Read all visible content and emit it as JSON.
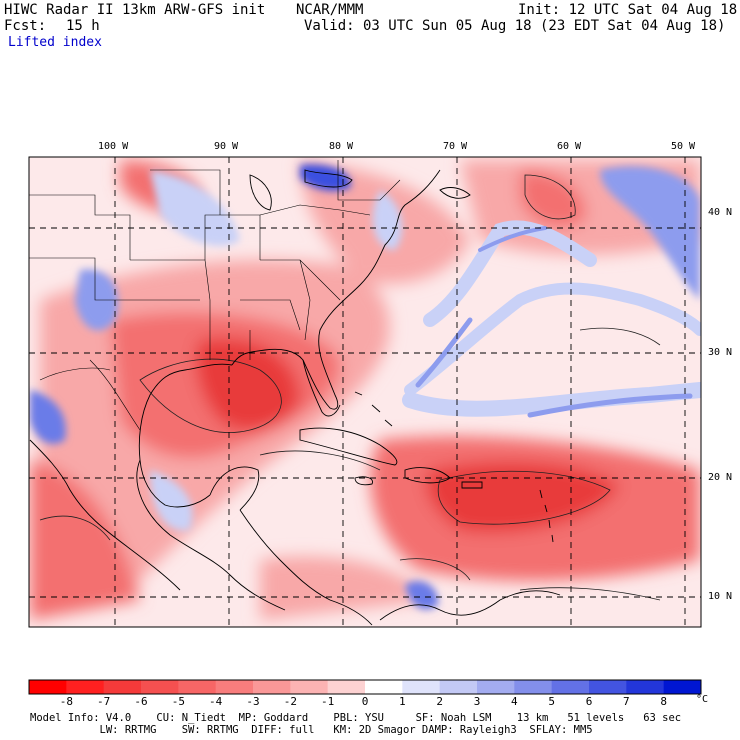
{
  "header": {
    "title": "HIWC Radar II 13km ARW-GFS init",
    "org": "NCAR/MMM",
    "fcst_label": "Fcst:",
    "fcst_value": "15 h",
    "init": "Init: 12 UTC Sat 04 Aug 18",
    "valid": "Valid: 03 UTC Sun 05 Aug 18 (23 EDT Sat 04 Aug 18)",
    "field": "Lifted index"
  },
  "map": {
    "lon_labels": [
      "100 W",
      "90 W",
      "80 W",
      "70 W",
      "60 W",
      "50 W"
    ],
    "lat_labels": [
      "40 N",
      "30 N",
      "20 N",
      "10 N"
    ],
    "colors": {
      "ocean_neutral": "#fde9ea",
      "red_strong": "#e83a3a",
      "red_mid": "#f37070",
      "red_light": "#f8a8a8",
      "blue_light": "#c9d1f7",
      "blue_mid": "#8d9cee",
      "blue_strong": "#3a4fe0"
    }
  },
  "colorbar": {
    "labels": [
      "-8",
      "-7",
      "-6",
      "-5",
      "-4",
      "-3",
      "-2",
      "-1",
      "0",
      "1",
      "2",
      "3",
      "4",
      "5",
      "6",
      "7",
      "8"
    ],
    "unit": "°C",
    "colors": [
      "#ff0000",
      "#ff2020",
      "#f53a3a",
      "#f55050",
      "#f76666",
      "#f87d7d",
      "#fa9898",
      "#fcb3b3",
      "#fdd2d2",
      "#ffffff",
      "#dfe3fb",
      "#c3c9f5",
      "#a3acf0",
      "#838feb",
      "#6371e6",
      "#4354e1",
      "#2336da",
      "#0016d2"
    ]
  },
  "model_info": {
    "line1": "Model Info: V4.0    CU: N_Tiedt  MP: Goddard    PBL: YSU     SF: Noah LSM    13 km   51 levels   63 sec",
    "line2": "           LW: RRTMG    SW: RRTMG  DIFF: full   KM: 2D Smagor DAMP: Rayleigh3  SFLAY: MM5"
  }
}
